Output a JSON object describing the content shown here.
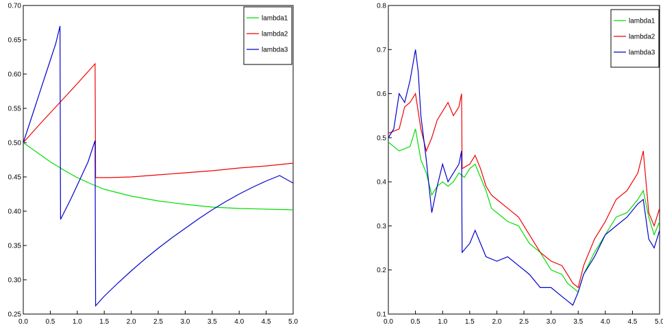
{
  "chart_data": [
    {
      "type": "line",
      "xlim": [
        0,
        5
      ],
      "ylim": [
        0.25,
        0.7
      ],
      "x_ticks": [
        "0.0",
        "0.5",
        "1.0",
        "1.5",
        "2.0",
        "2.5",
        "3.0",
        "3.5",
        "4.0",
        "4.5",
        "5.0"
      ],
      "y_ticks": [
        "0.25",
        "0.30",
        "0.35",
        "0.40",
        "0.45",
        "0.50",
        "0.55",
        "0.60",
        "0.65",
        "0.70"
      ],
      "grid": false,
      "legend_position": "top-right",
      "series": [
        {
          "name": "lambda1",
          "color": "#00dd00",
          "x": [
            0,
            0.25,
            0.5,
            0.75,
            1.0,
            1.25,
            1.5,
            2.0,
            2.5,
            3.0,
            3.5,
            4.0,
            4.5,
            5.0
          ],
          "y": [
            0.5,
            0.486,
            0.472,
            0.46,
            0.449,
            0.44,
            0.432,
            0.422,
            0.415,
            0.41,
            0.406,
            0.404,
            0.403,
            0.402
          ]
        },
        {
          "name": "lambda2",
          "color": "#ee0000",
          "x": [
            0,
            0.33,
            0.66,
            1.0,
            1.33,
            1.34,
            1.6,
            2.0,
            2.5,
            3.0,
            3.5,
            4.0,
            4.5,
            5.0
          ],
          "y": [
            0.5,
            0.529,
            0.557,
            0.586,
            0.615,
            0.449,
            0.449,
            0.45,
            0.453,
            0.456,
            0.459,
            0.463,
            0.466,
            0.47
          ]
        },
        {
          "name": "lambda3",
          "color": "#0000cc",
          "x": [
            0,
            0.1,
            0.2,
            0.3,
            0.4,
            0.5,
            0.6,
            0.68,
            0.69,
            0.8,
            0.9,
            1.0,
            1.1,
            1.2,
            1.33,
            1.34,
            1.5,
            1.75,
            2.0,
            2.25,
            2.5,
            2.75,
            3.0,
            3.25,
            3.5,
            3.75,
            4.0,
            4.25,
            4.5,
            4.75,
            5.0
          ],
          "y": [
            0.5,
            0.524,
            0.548,
            0.572,
            0.596,
            0.62,
            0.644,
            0.67,
            0.388,
            0.405,
            0.421,
            0.438,
            0.455,
            0.472,
            0.503,
            0.262,
            0.276,
            0.295,
            0.313,
            0.33,
            0.346,
            0.361,
            0.375,
            0.389,
            0.402,
            0.414,
            0.425,
            0.435,
            0.444,
            0.452,
            0.441
          ]
        }
      ]
    },
    {
      "type": "line",
      "xlim": [
        0,
        5
      ],
      "ylim": [
        0.1,
        0.8
      ],
      "x_ticks": [
        "0.0",
        "0.5",
        "1.0",
        "1.5",
        "2.0",
        "2.5",
        "3.0",
        "3.5",
        "4.0",
        "4.5",
        "5.0"
      ],
      "y_ticks": [
        "0.1",
        "0.2",
        "0.3",
        "0.4",
        "0.5",
        "0.6",
        "0.7",
        "0.8"
      ],
      "grid": false,
      "legend_position": "top-right",
      "series": [
        {
          "name": "lambda1",
          "color": "#00dd00",
          "x": [
            0,
            0.2,
            0.4,
            0.5,
            0.6,
            0.7,
            0.8,
            0.9,
            1.0,
            1.1,
            1.2,
            1.3,
            1.4,
            1.5,
            1.6,
            1.7,
            1.8,
            1.9,
            2.0,
            2.2,
            2.4,
            2.6,
            2.8,
            3.0,
            3.2,
            3.3,
            3.4,
            3.5,
            3.6,
            3.8,
            4.0,
            4.2,
            4.4,
            4.6,
            4.7,
            4.8,
            4.9,
            5.0
          ],
          "y": [
            0.49,
            0.47,
            0.48,
            0.52,
            0.45,
            0.42,
            0.37,
            0.39,
            0.4,
            0.39,
            0.4,
            0.42,
            0.41,
            0.43,
            0.44,
            0.41,
            0.38,
            0.34,
            0.33,
            0.31,
            0.3,
            0.26,
            0.24,
            0.2,
            0.19,
            0.17,
            0.16,
            0.15,
            0.19,
            0.24,
            0.28,
            0.32,
            0.33,
            0.36,
            0.38,
            0.32,
            0.28,
            0.31
          ]
        },
        {
          "name": "lambda2",
          "color": "#ee0000",
          "x": [
            0,
            0.2,
            0.3,
            0.4,
            0.5,
            0.6,
            0.7,
            0.8,
            0.9,
            1.0,
            1.1,
            1.2,
            1.3,
            1.35,
            1.36,
            1.5,
            1.6,
            1.7,
            1.8,
            1.9,
            2.0,
            2.2,
            2.4,
            2.6,
            2.8,
            3.0,
            3.2,
            3.3,
            3.4,
            3.5,
            3.6,
            3.8,
            4.0,
            4.2,
            4.4,
            4.6,
            4.7,
            4.8,
            4.9,
            5.0
          ],
          "y": [
            0.51,
            0.52,
            0.57,
            0.58,
            0.6,
            0.52,
            0.47,
            0.5,
            0.54,
            0.56,
            0.58,
            0.55,
            0.57,
            0.6,
            0.43,
            0.44,
            0.46,
            0.43,
            0.39,
            0.37,
            0.36,
            0.34,
            0.32,
            0.28,
            0.24,
            0.22,
            0.21,
            0.19,
            0.17,
            0.16,
            0.21,
            0.27,
            0.31,
            0.36,
            0.38,
            0.42,
            0.47,
            0.33,
            0.3,
            0.34
          ]
        },
        {
          "name": "lambda3",
          "color": "#0000cc",
          "x": [
            0,
            0.1,
            0.2,
            0.3,
            0.4,
            0.5,
            0.55,
            0.6,
            0.7,
            0.8,
            0.9,
            1.0,
            1.1,
            1.2,
            1.3,
            1.35,
            1.36,
            1.5,
            1.6,
            1.7,
            1.8,
            2.0,
            2.2,
            2.4,
            2.6,
            2.8,
            3.0,
            3.2,
            3.3,
            3.4,
            3.5,
            3.6,
            3.8,
            4.0,
            4.2,
            4.4,
            4.6,
            4.7,
            4.8,
            4.9,
            5.0
          ],
          "y": [
            0.5,
            0.52,
            0.6,
            0.58,
            0.63,
            0.7,
            0.65,
            0.55,
            0.45,
            0.33,
            0.39,
            0.44,
            0.4,
            0.42,
            0.44,
            0.47,
            0.24,
            0.26,
            0.29,
            0.26,
            0.23,
            0.22,
            0.23,
            0.21,
            0.19,
            0.16,
            0.16,
            0.14,
            0.13,
            0.12,
            0.15,
            0.19,
            0.23,
            0.28,
            0.3,
            0.32,
            0.35,
            0.36,
            0.27,
            0.25,
            0.29
          ]
        }
      ]
    }
  ],
  "colors": {
    "axis": "#000000",
    "legend_border": "#000000",
    "background": "#ffffff"
  }
}
